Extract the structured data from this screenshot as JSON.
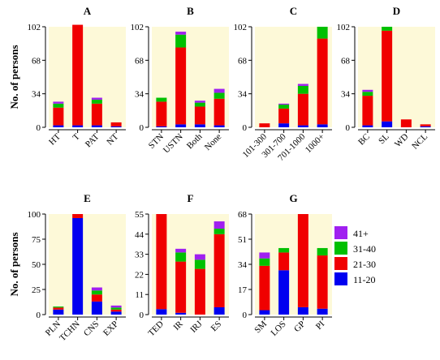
{
  "chart_data": [
    {
      "type": "bar",
      "stacked": true,
      "title": "A",
      "ylabel": "No. of persons",
      "ylim": [
        0,
        102
      ],
      "yticks": [
        0,
        34,
        68,
        102
      ],
      "categories": [
        "HT",
        "T",
        "PAT",
        "NT"
      ],
      "series": [
        {
          "name": "11-20",
          "values": [
            2,
            2,
            2,
            1
          ]
        },
        {
          "name": "21-30",
          "values": [
            18,
            102,
            22,
            4
          ]
        },
        {
          "name": "31-40",
          "values": [
            4,
            0,
            4,
            0
          ]
        },
        {
          "name": "41+",
          "values": [
            2,
            0,
            2,
            0
          ]
        }
      ]
    },
    {
      "type": "bar",
      "stacked": true,
      "title": "B",
      "ylim": [
        0,
        102
      ],
      "yticks": [
        0,
        34,
        68,
        102
      ],
      "categories": [
        "STN",
        "USTN",
        "Both",
        "None"
      ],
      "series": [
        {
          "name": "11-20",
          "values": [
            1,
            3,
            3,
            2
          ]
        },
        {
          "name": "21-30",
          "values": [
            25,
            78,
            18,
            27
          ]
        },
        {
          "name": "31-40",
          "values": [
            4,
            13,
            4,
            6
          ]
        },
        {
          "name": "41+",
          "values": [
            0,
            3,
            2,
            4
          ]
        }
      ]
    },
    {
      "type": "bar",
      "stacked": true,
      "title": "C",
      "ylim": [
        0,
        102
      ],
      "yticks": [
        0,
        34,
        68,
        102
      ],
      "categories": [
        "101-300",
        "301-700",
        "701-1000",
        "1000+"
      ],
      "series": [
        {
          "name": "11-20",
          "values": [
            0,
            4,
            2,
            3
          ]
        },
        {
          "name": "21-30",
          "values": [
            4,
            15,
            32,
            87
          ]
        },
        {
          "name": "31-40",
          "values": [
            0,
            4,
            8,
            12
          ]
        },
        {
          "name": "41+",
          "values": [
            0,
            1,
            2,
            0
          ]
        }
      ]
    },
    {
      "type": "bar",
      "stacked": true,
      "title": "D",
      "ylim": [
        0,
        102
      ],
      "yticks": [
        0,
        34,
        68,
        102
      ],
      "categories": [
        "BC",
        "SL",
        "WD",
        "NCL"
      ],
      "series": [
        {
          "name": "11-20",
          "values": [
            2,
            6,
            0,
            1
          ]
        },
        {
          "name": "21-30",
          "values": [
            30,
            92,
            8,
            2
          ]
        },
        {
          "name": "31-40",
          "values": [
            4,
            4,
            0,
            0
          ]
        },
        {
          "name": "41+",
          "values": [
            2,
            0,
            0,
            0
          ]
        }
      ]
    },
    {
      "type": "bar",
      "stacked": true,
      "title": "E",
      "ylabel": "No. of persons",
      "ylim": [
        0,
        100
      ],
      "yticks": [
        0,
        25,
        50,
        75,
        100
      ],
      "categories": [
        "PLN",
        "TCHN",
        "CNS",
        "EXP"
      ],
      "series": [
        {
          "name": "11-20",
          "values": [
            5,
            96,
            13,
            3
          ]
        },
        {
          "name": "21-30",
          "values": [
            2,
            4,
            7,
            2
          ]
        },
        {
          "name": "31-40",
          "values": [
            1,
            0,
            4,
            2
          ]
        },
        {
          "name": "41+",
          "values": [
            0,
            0,
            3,
            2
          ]
        }
      ]
    },
    {
      "type": "bar",
      "stacked": true,
      "title": "F",
      "ylim": [
        0,
        55
      ],
      "yticks": [
        0,
        11,
        22,
        33,
        44,
        55
      ],
      "categories": [
        "TED",
        "IR",
        "IRJ",
        "ES"
      ],
      "series": [
        {
          "name": "11-20",
          "values": [
            3,
            1,
            0,
            4
          ]
        },
        {
          "name": "21-30",
          "values": [
            52,
            28,
            25,
            40
          ]
        },
        {
          "name": "31-40",
          "values": [
            0,
            5,
            5,
            3
          ]
        },
        {
          "name": "41+",
          "values": [
            0,
            2,
            3,
            4
          ]
        }
      ]
    },
    {
      "type": "bar",
      "stacked": true,
      "title": "G",
      "ylim": [
        0,
        68
      ],
      "yticks": [
        0,
        17,
        34,
        51,
        68
      ],
      "categories": [
        "SM",
        "LOS",
        "GP",
        "PI"
      ],
      "series": [
        {
          "name": "11-20",
          "values": [
            3,
            30,
            5,
            4
          ]
        },
        {
          "name": "21-30",
          "values": [
            30,
            12,
            63,
            36
          ]
        },
        {
          "name": "31-40",
          "values": [
            5,
            3,
            0,
            5
          ]
        },
        {
          "name": "41+",
          "values": [
            4,
            0,
            0,
            0
          ]
        }
      ]
    }
  ],
  "legend": {
    "entries": [
      {
        "label": "41+",
        "color": "#a020f0"
      },
      {
        "label": "31-40",
        "color": "#00c000"
      },
      {
        "label": "21-30",
        "color": "#f00000"
      },
      {
        "label": "11-20",
        "color": "#0000f0"
      }
    ]
  },
  "colors": {
    "11-20": "#0000f0",
    "21-30": "#f00000",
    "31-40": "#00c000",
    "41+": "#a020f0",
    "plot_background": "#fdf9d8"
  }
}
